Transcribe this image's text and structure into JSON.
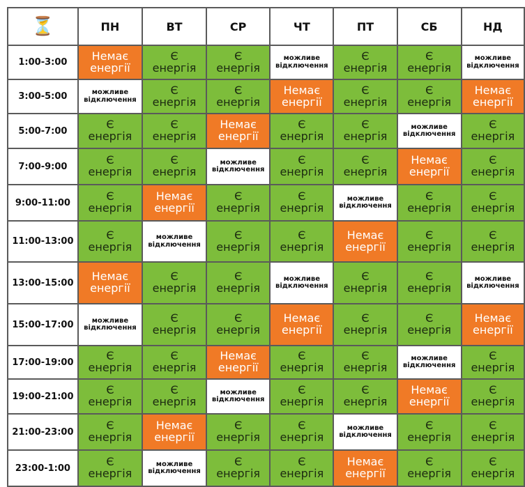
{
  "header": {
    "corner_icon": "hourglass-icon",
    "days": [
      "ПН",
      "ВТ",
      "СР",
      "ЧТ",
      "ПТ",
      "СБ",
      "НД"
    ]
  },
  "states": {
    "on": {
      "line1": "Є",
      "line2": "енергія",
      "color": "#7dbd3b"
    },
    "off": {
      "line1": "Немає",
      "line2": "енергії",
      "color": "#f07a26"
    },
    "maybe": {
      "line1": "можливе",
      "line2": "відключення",
      "color": "#ffffff"
    }
  },
  "rows": [
    {
      "time": "1:00-3:00",
      "cells": [
        "off",
        "on",
        "on",
        "maybe",
        "on",
        "on",
        "maybe"
      ]
    },
    {
      "time": "3:00-5:00",
      "cells": [
        "maybe",
        "on",
        "on",
        "off",
        "on",
        "on",
        "off"
      ]
    },
    {
      "time": "5:00-7:00",
      "cells": [
        "on",
        "on",
        "off",
        "on",
        "on",
        "maybe",
        "on"
      ]
    },
    {
      "time": "7:00-9:00",
      "cells": [
        "on",
        "on",
        "maybe",
        "on",
        "on",
        "off",
        "on"
      ]
    },
    {
      "time": "9:00-11:00",
      "cells": [
        "on",
        "off",
        "on",
        "on",
        "maybe",
        "on",
        "on"
      ]
    },
    {
      "time": "11:00-13:00",
      "cells": [
        "on",
        "maybe",
        "on",
        "on",
        "off",
        "on",
        "on"
      ]
    },
    {
      "time": "13:00-15:00",
      "cells": [
        "off",
        "on",
        "on",
        "maybe",
        "on",
        "on",
        "maybe"
      ]
    },
    {
      "time": "15:00-17:00",
      "cells": [
        "maybe",
        "on",
        "on",
        "off",
        "on",
        "on",
        "off"
      ]
    },
    {
      "time": "17:00-19:00",
      "cells": [
        "on",
        "on",
        "off",
        "on",
        "on",
        "maybe",
        "on"
      ]
    },
    {
      "time": "19:00-21:00",
      "cells": [
        "on",
        "on",
        "maybe",
        "on",
        "on",
        "off",
        "on"
      ]
    },
    {
      "time": "21:00-23:00",
      "cells": [
        "on",
        "off",
        "on",
        "on",
        "maybe",
        "on",
        "on"
      ]
    },
    {
      "time": "23:00-1:00",
      "cells": [
        "on",
        "maybe",
        "on",
        "on",
        "off",
        "on",
        "on"
      ]
    }
  ]
}
